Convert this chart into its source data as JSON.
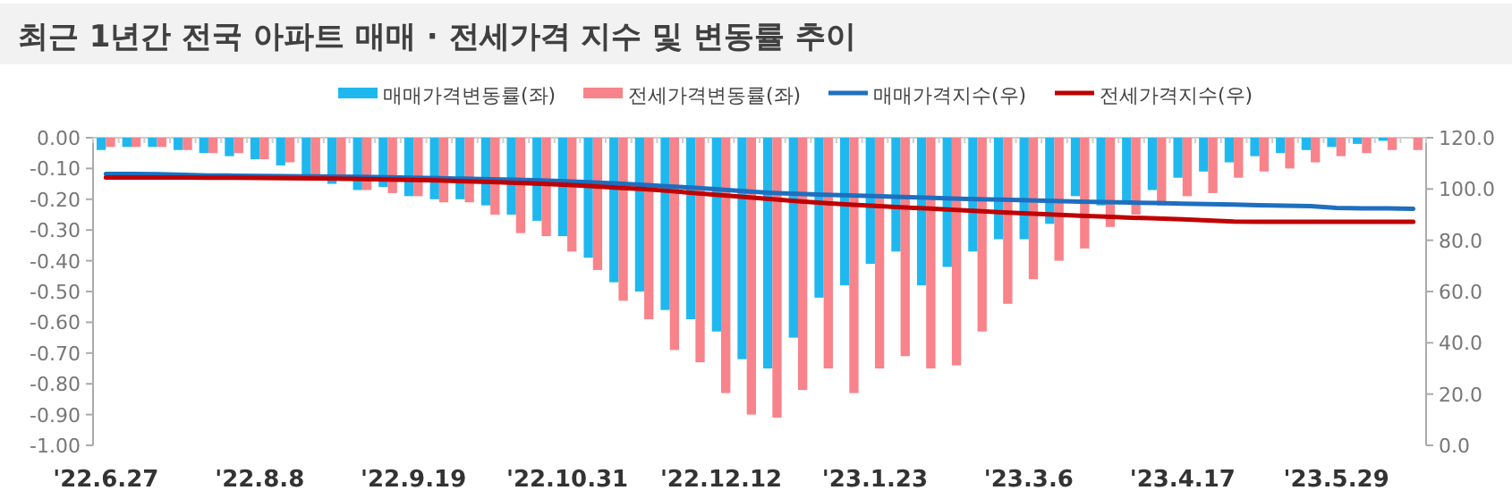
{
  "chart_data": {
    "type": "bar",
    "title": "최근 1년간 전국 아파트 매매 · 전세가격 지수 및 변동률 추이",
    "categories": [
      "'22.6.27",
      null,
      null,
      null,
      null,
      null,
      "'22.8.8",
      null,
      null,
      null,
      null,
      null,
      "'22.9.19",
      null,
      null,
      null,
      null,
      null,
      "'22.10.31",
      null,
      null,
      null,
      null,
      null,
      "'22.12.12",
      null,
      null,
      null,
      null,
      null,
      "'23.1.23",
      null,
      null,
      null,
      null,
      null,
      "'23.3.6",
      null,
      null,
      null,
      null,
      null,
      "'23.4.17",
      null,
      null,
      null,
      null,
      null,
      "'23.5.29",
      null,
      null,
      null
    ],
    "series": [
      {
        "name": "매매가격변동률(좌)",
        "color": "#1fb8ee",
        "values": [
          -0.04,
          -0.03,
          -0.03,
          -0.04,
          -0.05,
          -0.06,
          -0.07,
          -0.09,
          -0.12,
          -0.15,
          -0.17,
          -0.16,
          -0.19,
          -0.2,
          -0.2,
          -0.22,
          -0.25,
          -0.27,
          -0.32,
          -0.39,
          -0.47,
          -0.5,
          -0.56,
          -0.59,
          -0.63,
          -0.72,
          -0.75,
          -0.65,
          -0.52,
          -0.48,
          -0.41,
          -0.37,
          -0.48,
          -0.42,
          -0.37,
          -0.33,
          -0.33,
          -0.28,
          -0.19,
          -0.22,
          -0.21,
          -0.17,
          -0.13,
          -0.11,
          -0.08,
          -0.06,
          -0.05,
          -0.04,
          -0.03,
          -0.02,
          -0.01,
          0.0
        ]
      },
      {
        "name": "전세가격변동률(좌)",
        "color": "#f8838a",
        "values": [
          -0.03,
          -0.03,
          -0.03,
          -0.04,
          -0.05,
          -0.05,
          -0.07,
          -0.08,
          -0.13,
          -0.14,
          -0.17,
          -0.18,
          -0.19,
          -0.21,
          -0.21,
          -0.25,
          -0.31,
          -0.32,
          -0.37,
          -0.43,
          -0.53,
          -0.59,
          -0.69,
          -0.73,
          -0.83,
          -0.9,
          -0.91,
          -0.82,
          -0.75,
          -0.83,
          -0.75,
          -0.71,
          -0.75,
          -0.74,
          -0.63,
          -0.54,
          -0.46,
          -0.4,
          -0.36,
          -0.29,
          -0.25,
          -0.22,
          -0.19,
          -0.18,
          -0.13,
          -0.11,
          -0.1,
          -0.08,
          -0.06,
          -0.05,
          -0.04,
          -0.04
        ]
      },
      {
        "name": "매매가격지수(우)",
        "type": "line",
        "axis": "y2",
        "color": "#1e6fbf",
        "values": [
          105.9,
          105.9,
          105.8,
          105.5,
          105.3,
          105.2,
          105.1,
          105.0,
          104.9,
          104.8,
          104.7,
          104.6,
          104.4,
          104.2,
          104.0,
          103.8,
          103.6,
          103.3,
          103.0,
          102.6,
          102.1,
          101.6,
          101.0,
          100.5,
          99.8,
          99.1,
          98.5,
          98.1,
          97.8,
          97.5,
          97.2,
          96.9,
          96.6,
          96.3,
          96.0,
          95.8,
          95.6,
          95.3,
          95.1,
          94.9,
          94.7,
          94.5,
          94.3,
          94.1,
          93.9,
          93.7,
          93.5,
          93.3,
          92.6,
          92.4,
          92.4,
          92.3
        ]
      },
      {
        "name": "전세가격지수(우)",
        "type": "line",
        "axis": "y2",
        "color": "#c00000",
        "values": [
          104.5,
          104.5,
          104.5,
          104.5,
          104.4,
          104.4,
          104.3,
          104.2,
          104.1,
          104.0,
          103.9,
          103.7,
          103.5,
          103.3,
          103.0,
          102.7,
          102.4,
          102.0,
          101.6,
          101.1,
          100.5,
          99.9,
          99.2,
          98.4,
          97.6,
          96.8,
          96.0,
          95.2,
          94.5,
          93.9,
          93.4,
          92.9,
          92.4,
          91.9,
          91.4,
          90.9,
          90.4,
          90.0,
          89.6,
          89.2,
          88.8,
          88.5,
          88.2,
          87.7,
          87.3,
          87.2,
          87.2,
          87.2,
          87.2,
          87.2,
          87.2,
          87.2
        ]
      }
    ],
    "ylim": [
      -1,
      0
    ],
    "yticks": [
      {
        "value": 0,
        "label": "0.00"
      },
      {
        "value": -0.1,
        "label": "-0.10"
      },
      {
        "value": -0.2,
        "label": "-0.20"
      },
      {
        "value": -0.3,
        "label": "-0.30"
      },
      {
        "value": -0.4,
        "label": "-0.40"
      },
      {
        "value": -0.5,
        "label": "-0.50"
      },
      {
        "value": -0.6,
        "label": "-0.60"
      },
      {
        "value": -0.7,
        "label": "-0.70"
      },
      {
        "value": -0.8,
        "label": "-0.80"
      },
      {
        "value": -0.9,
        "label": "-0.90"
      },
      {
        "value": -1,
        "label": "-1.00"
      }
    ],
    "y2lim": [
      0,
      120
    ],
    "y2ticks": [
      {
        "value": 0,
        "label": "0.0"
      },
      {
        "value": 20,
        "label": "20.0"
      },
      {
        "value": 40,
        "label": "40.0"
      },
      {
        "value": 60,
        "label": "60.0"
      },
      {
        "value": 80,
        "label": "80.0"
      },
      {
        "value": 100,
        "label": "100.0"
      },
      {
        "value": 120,
        "label": "120.0"
      }
    ],
    "grid": false,
    "legend": "top"
  }
}
